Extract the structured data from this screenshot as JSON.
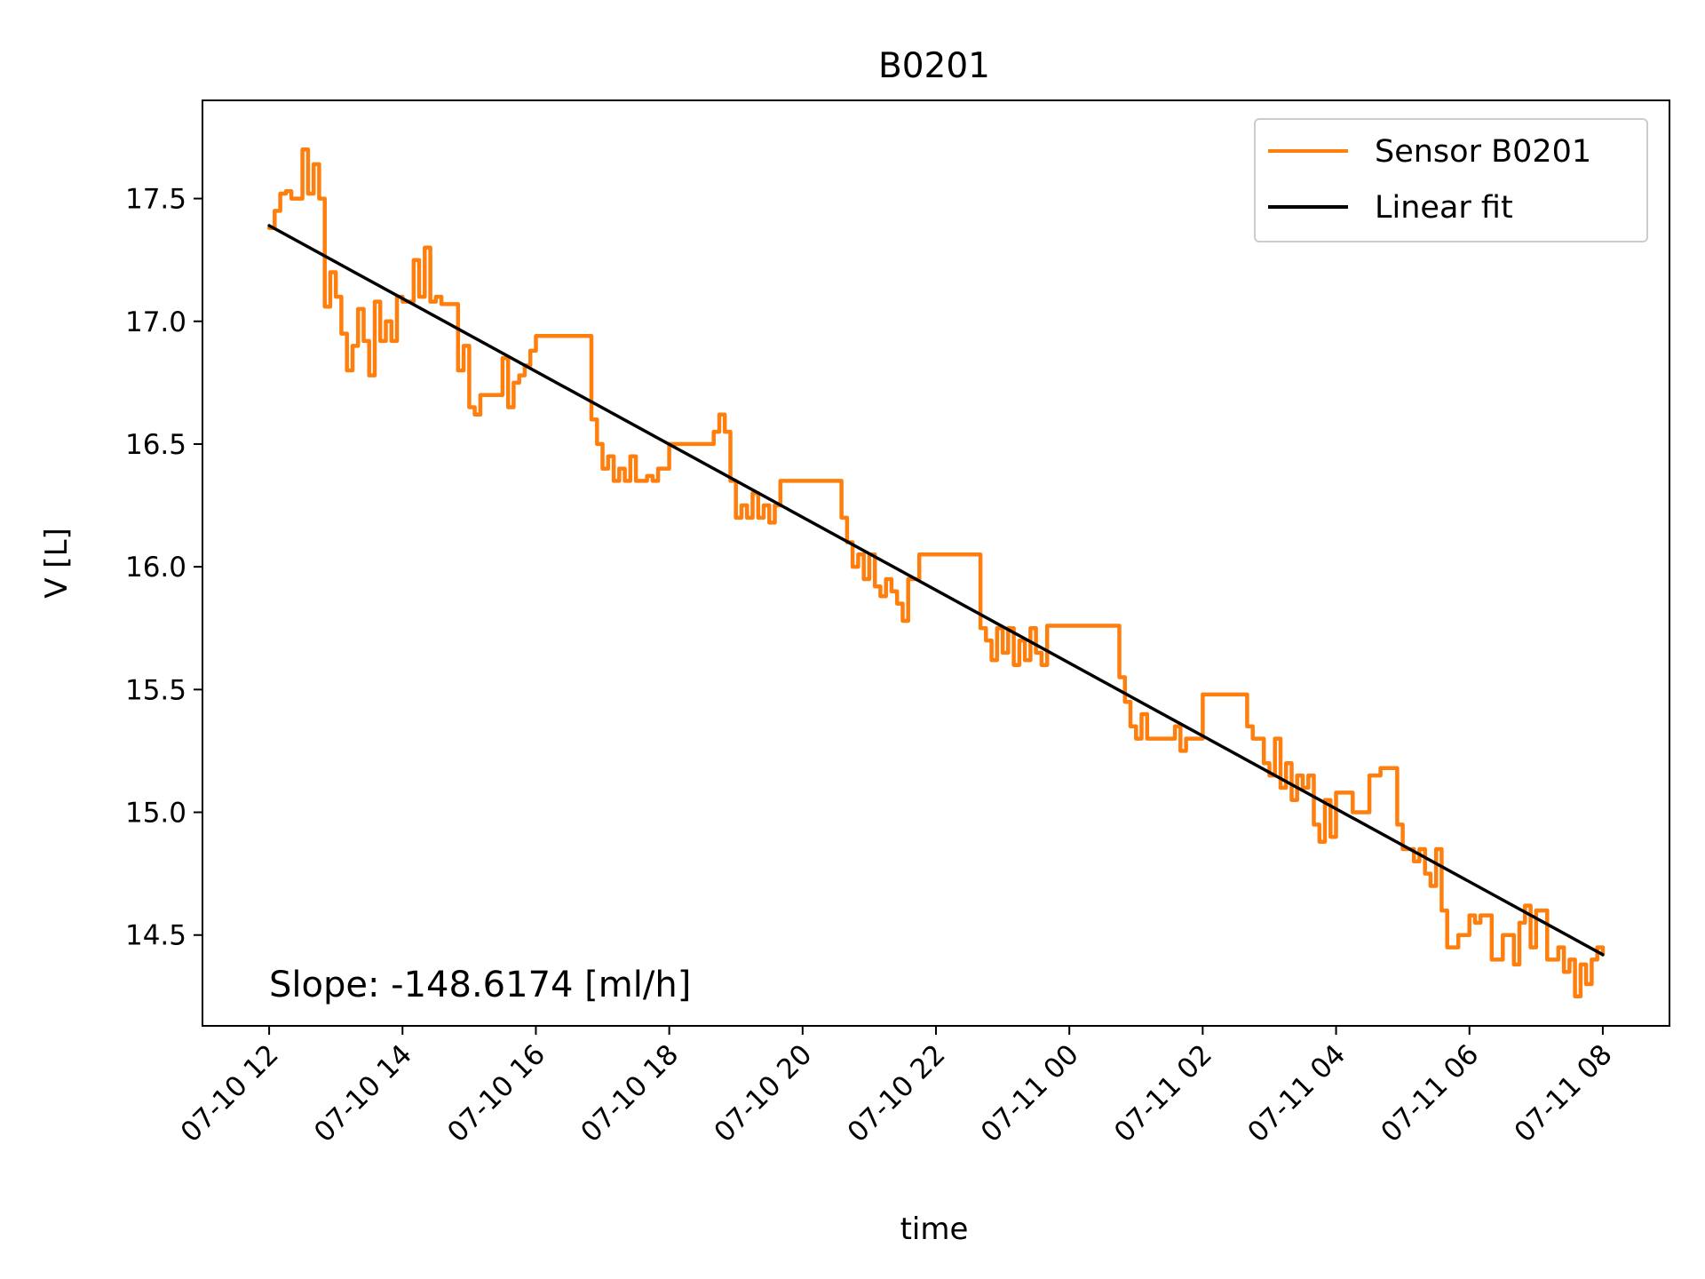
{
  "chart_data": {
    "type": "line",
    "title": "B0201",
    "xlabel": "time",
    "ylabel": "V [L]",
    "xlim": [
      "2023-07-10 11:00",
      "2023-07-11 09:00"
    ],
    "ylim": [
      14.13,
      17.9
    ],
    "x_ticks": [
      "07-10 12",
      "07-10 14",
      "07-10 16",
      "07-10 18",
      "07-10 20",
      "07-10 22",
      "07-11 00",
      "07-11 02",
      "07-11 04",
      "07-11 06",
      "07-11 08"
    ],
    "x_tick_times": [
      "2023-07-10 12:00",
      "2023-07-10 14:00",
      "2023-07-10 16:00",
      "2023-07-10 18:00",
      "2023-07-10 20:00",
      "2023-07-10 22:00",
      "2023-07-11 00:00",
      "2023-07-11 02:00",
      "2023-07-11 04:00",
      "2023-07-11 06:00",
      "2023-07-11 08:00"
    ],
    "y_ticks": [
      "14.5",
      "15.0",
      "15.5",
      "16.0",
      "16.5",
      "17.0",
      "17.5"
    ],
    "y_tick_values": [
      14.5,
      15.0,
      15.5,
      16.0,
      16.5,
      17.0,
      17.5
    ],
    "grid": false,
    "legend": {
      "position": "top-right"
    },
    "series": [
      {
        "name": "Sensor B0201",
        "color": "#ff7f0e",
        "x": [
          "2023-07-10 12:00",
          "2023-07-10 12:05",
          "2023-07-10 12:10",
          "2023-07-10 12:15",
          "2023-07-10 12:20",
          "2023-07-10 12:30",
          "2023-07-10 12:35",
          "2023-07-10 12:40",
          "2023-07-10 12:45",
          "2023-07-10 12:50",
          "2023-07-10 12:55",
          "2023-07-10 13:00",
          "2023-07-10 13:05",
          "2023-07-10 13:10",
          "2023-07-10 13:15",
          "2023-07-10 13:20",
          "2023-07-10 13:25",
          "2023-07-10 13:30",
          "2023-07-10 13:35",
          "2023-07-10 13:40",
          "2023-07-10 13:45",
          "2023-07-10 13:50",
          "2023-07-10 13:55",
          "2023-07-10 14:00",
          "2023-07-10 14:10",
          "2023-07-10 14:15",
          "2023-07-10 14:20",
          "2023-07-10 14:25",
          "2023-07-10 14:30",
          "2023-07-10 14:35",
          "2023-07-10 14:50",
          "2023-07-10 14:55",
          "2023-07-10 15:00",
          "2023-07-10 15:05",
          "2023-07-10 15:10",
          "2023-07-10 15:15",
          "2023-07-10 15:30",
          "2023-07-10 15:35",
          "2023-07-10 15:40",
          "2023-07-10 15:45",
          "2023-07-10 15:50",
          "2023-07-10 15:55",
          "2023-07-10 16:00",
          "2023-07-10 16:10",
          "2023-07-10 16:30",
          "2023-07-10 16:45",
          "2023-07-10 16:50",
          "2023-07-10 16:55",
          "2023-07-10 17:00",
          "2023-07-10 17:05",
          "2023-07-10 17:10",
          "2023-07-10 17:15",
          "2023-07-10 17:20",
          "2023-07-10 17:25",
          "2023-07-10 17:30",
          "2023-07-10 17:40",
          "2023-07-10 17:45",
          "2023-07-10 17:50",
          "2023-07-10 18:00",
          "2023-07-10 18:10",
          "2023-07-10 18:20",
          "2023-07-10 18:30",
          "2023-07-10 18:40",
          "2023-07-10 18:45",
          "2023-07-10 18:50",
          "2023-07-10 18:55",
          "2023-07-10 19:00",
          "2023-07-10 19:05",
          "2023-07-10 19:10",
          "2023-07-10 19:15",
          "2023-07-10 19:20",
          "2023-07-10 19:25",
          "2023-07-10 19:30",
          "2023-07-10 19:35",
          "2023-07-10 19:40",
          "2023-07-10 20:00",
          "2023-07-10 20:30",
          "2023-07-10 20:35",
          "2023-07-10 20:40",
          "2023-07-10 20:45",
          "2023-07-10 20:50",
          "2023-07-10 20:55",
          "2023-07-10 21:00",
          "2023-07-10 21:05",
          "2023-07-10 21:10",
          "2023-07-10 21:15",
          "2023-07-10 21:20",
          "2023-07-10 21:25",
          "2023-07-10 21:30",
          "2023-07-10 21:35",
          "2023-07-10 21:45",
          "2023-07-10 21:50",
          "2023-07-10 22:00",
          "2023-07-10 22:30",
          "2023-07-10 22:40",
          "2023-07-10 22:45",
          "2023-07-10 22:50",
          "2023-07-10 22:55",
          "2023-07-10 23:00",
          "2023-07-10 23:05",
          "2023-07-10 23:10",
          "2023-07-10 23:15",
          "2023-07-10 23:20",
          "2023-07-10 23:25",
          "2023-07-10 23:30",
          "2023-07-10 23:35",
          "2023-07-10 23:40",
          "2023-07-10 23:45",
          "2023-07-11 00:00",
          "2023-07-11 00:30",
          "2023-07-11 00:45",
          "2023-07-11 00:50",
          "2023-07-11 00:55",
          "2023-07-11 01:00",
          "2023-07-11 01:05",
          "2023-07-11 01:10",
          "2023-07-11 01:30",
          "2023-07-11 01:35",
          "2023-07-11 01:40",
          "2023-07-11 01:45",
          "2023-07-11 02:00",
          "2023-07-11 02:30",
          "2023-07-11 02:35",
          "2023-07-11 02:40",
          "2023-07-11 02:45",
          "2023-07-11 02:55",
          "2023-07-11 03:00",
          "2023-07-11 03:05",
          "2023-07-11 03:10",
          "2023-07-11 03:15",
          "2023-07-11 03:20",
          "2023-07-11 03:25",
          "2023-07-11 03:30",
          "2023-07-11 03:35",
          "2023-07-11 03:40",
          "2023-07-11 03:45",
          "2023-07-11 03:50",
          "2023-07-11 03:55",
          "2023-07-11 04:00",
          "2023-07-11 04:15",
          "2023-07-11 04:30",
          "2023-07-11 04:40",
          "2023-07-11 04:45",
          "2023-07-11 04:50",
          "2023-07-11 04:55",
          "2023-07-11 05:00",
          "2023-07-11 05:10",
          "2023-07-11 05:15",
          "2023-07-11 05:20",
          "2023-07-11 05:25",
          "2023-07-11 05:30",
          "2023-07-11 05:35",
          "2023-07-11 05:40",
          "2023-07-11 05:50",
          "2023-07-11 06:00",
          "2023-07-11 06:05",
          "2023-07-11 06:10",
          "2023-07-11 06:20",
          "2023-07-11 06:30",
          "2023-07-11 06:40",
          "2023-07-11 06:45",
          "2023-07-11 06:50",
          "2023-07-11 06:55",
          "2023-07-11 07:00",
          "2023-07-11 07:10",
          "2023-07-11 07:20",
          "2023-07-11 07:25",
          "2023-07-11 07:30",
          "2023-07-11 07:35",
          "2023-07-11 07:40",
          "2023-07-11 07:45",
          "2023-07-11 07:50",
          "2023-07-11 07:55",
          "2023-07-11 08:00"
        ],
        "y": [
          17.38,
          17.45,
          17.52,
          17.53,
          17.5,
          17.7,
          17.52,
          17.64,
          17.5,
          17.06,
          17.2,
          17.1,
          16.95,
          16.8,
          16.9,
          17.05,
          16.92,
          16.78,
          17.08,
          16.92,
          17.0,
          16.92,
          17.1,
          17.08,
          17.25,
          17.1,
          17.3,
          17.08,
          17.1,
          17.07,
          16.8,
          16.9,
          16.65,
          16.62,
          16.7,
          16.7,
          16.85,
          16.65,
          16.75,
          16.78,
          16.82,
          16.88,
          16.94,
          16.94,
          16.94,
          16.94,
          16.6,
          16.5,
          16.4,
          16.45,
          16.35,
          16.4,
          16.35,
          16.45,
          16.35,
          16.37,
          16.35,
          16.4,
          16.5,
          16.5,
          16.5,
          16.5,
          16.55,
          16.62,
          16.55,
          16.35,
          16.2,
          16.25,
          16.2,
          16.3,
          16.2,
          16.25,
          16.18,
          16.25,
          16.35,
          16.35,
          16.35,
          16.2,
          16.1,
          16.0,
          16.05,
          15.95,
          16.05,
          15.92,
          15.88,
          15.95,
          15.9,
          15.85,
          15.78,
          15.95,
          16.05,
          16.05,
          16.05,
          16.05,
          15.75,
          15.7,
          15.62,
          15.75,
          15.65,
          15.75,
          15.6,
          15.7,
          15.62,
          15.75,
          15.65,
          15.6,
          15.76,
          15.76,
          15.76,
          15.76,
          15.55,
          15.45,
          15.35,
          15.3,
          15.4,
          15.3,
          15.3,
          15.35,
          15.25,
          15.3,
          15.48,
          15.48,
          15.48,
          15.35,
          15.3,
          15.2,
          15.15,
          15.3,
          15.1,
          15.2,
          15.05,
          15.15,
          15.1,
          15.15,
          14.95,
          14.88,
          15.05,
          14.9,
          15.08,
          15.0,
          15.15,
          15.18,
          15.18,
          15.18,
          14.95,
          14.85,
          14.8,
          14.85,
          14.75,
          14.7,
          14.85,
          14.6,
          14.45,
          14.5,
          14.58,
          14.55,
          14.58,
          14.4,
          14.5,
          14.38,
          14.55,
          14.62,
          14.45,
          14.6,
          14.4,
          14.45,
          14.35,
          14.4,
          14.25,
          14.38,
          14.3,
          14.4,
          14.45,
          14.42
        ]
      },
      {
        "name": "Linear fit",
        "color": "#000000",
        "x": [
          "2023-07-10 12:00",
          "2023-07-11 08:00"
        ],
        "y": [
          17.39,
          14.42
        ]
      }
    ],
    "annotations": [
      {
        "text": "Slope: -148.6174 [ml/h]",
        "position": "bottom-left"
      }
    ]
  }
}
